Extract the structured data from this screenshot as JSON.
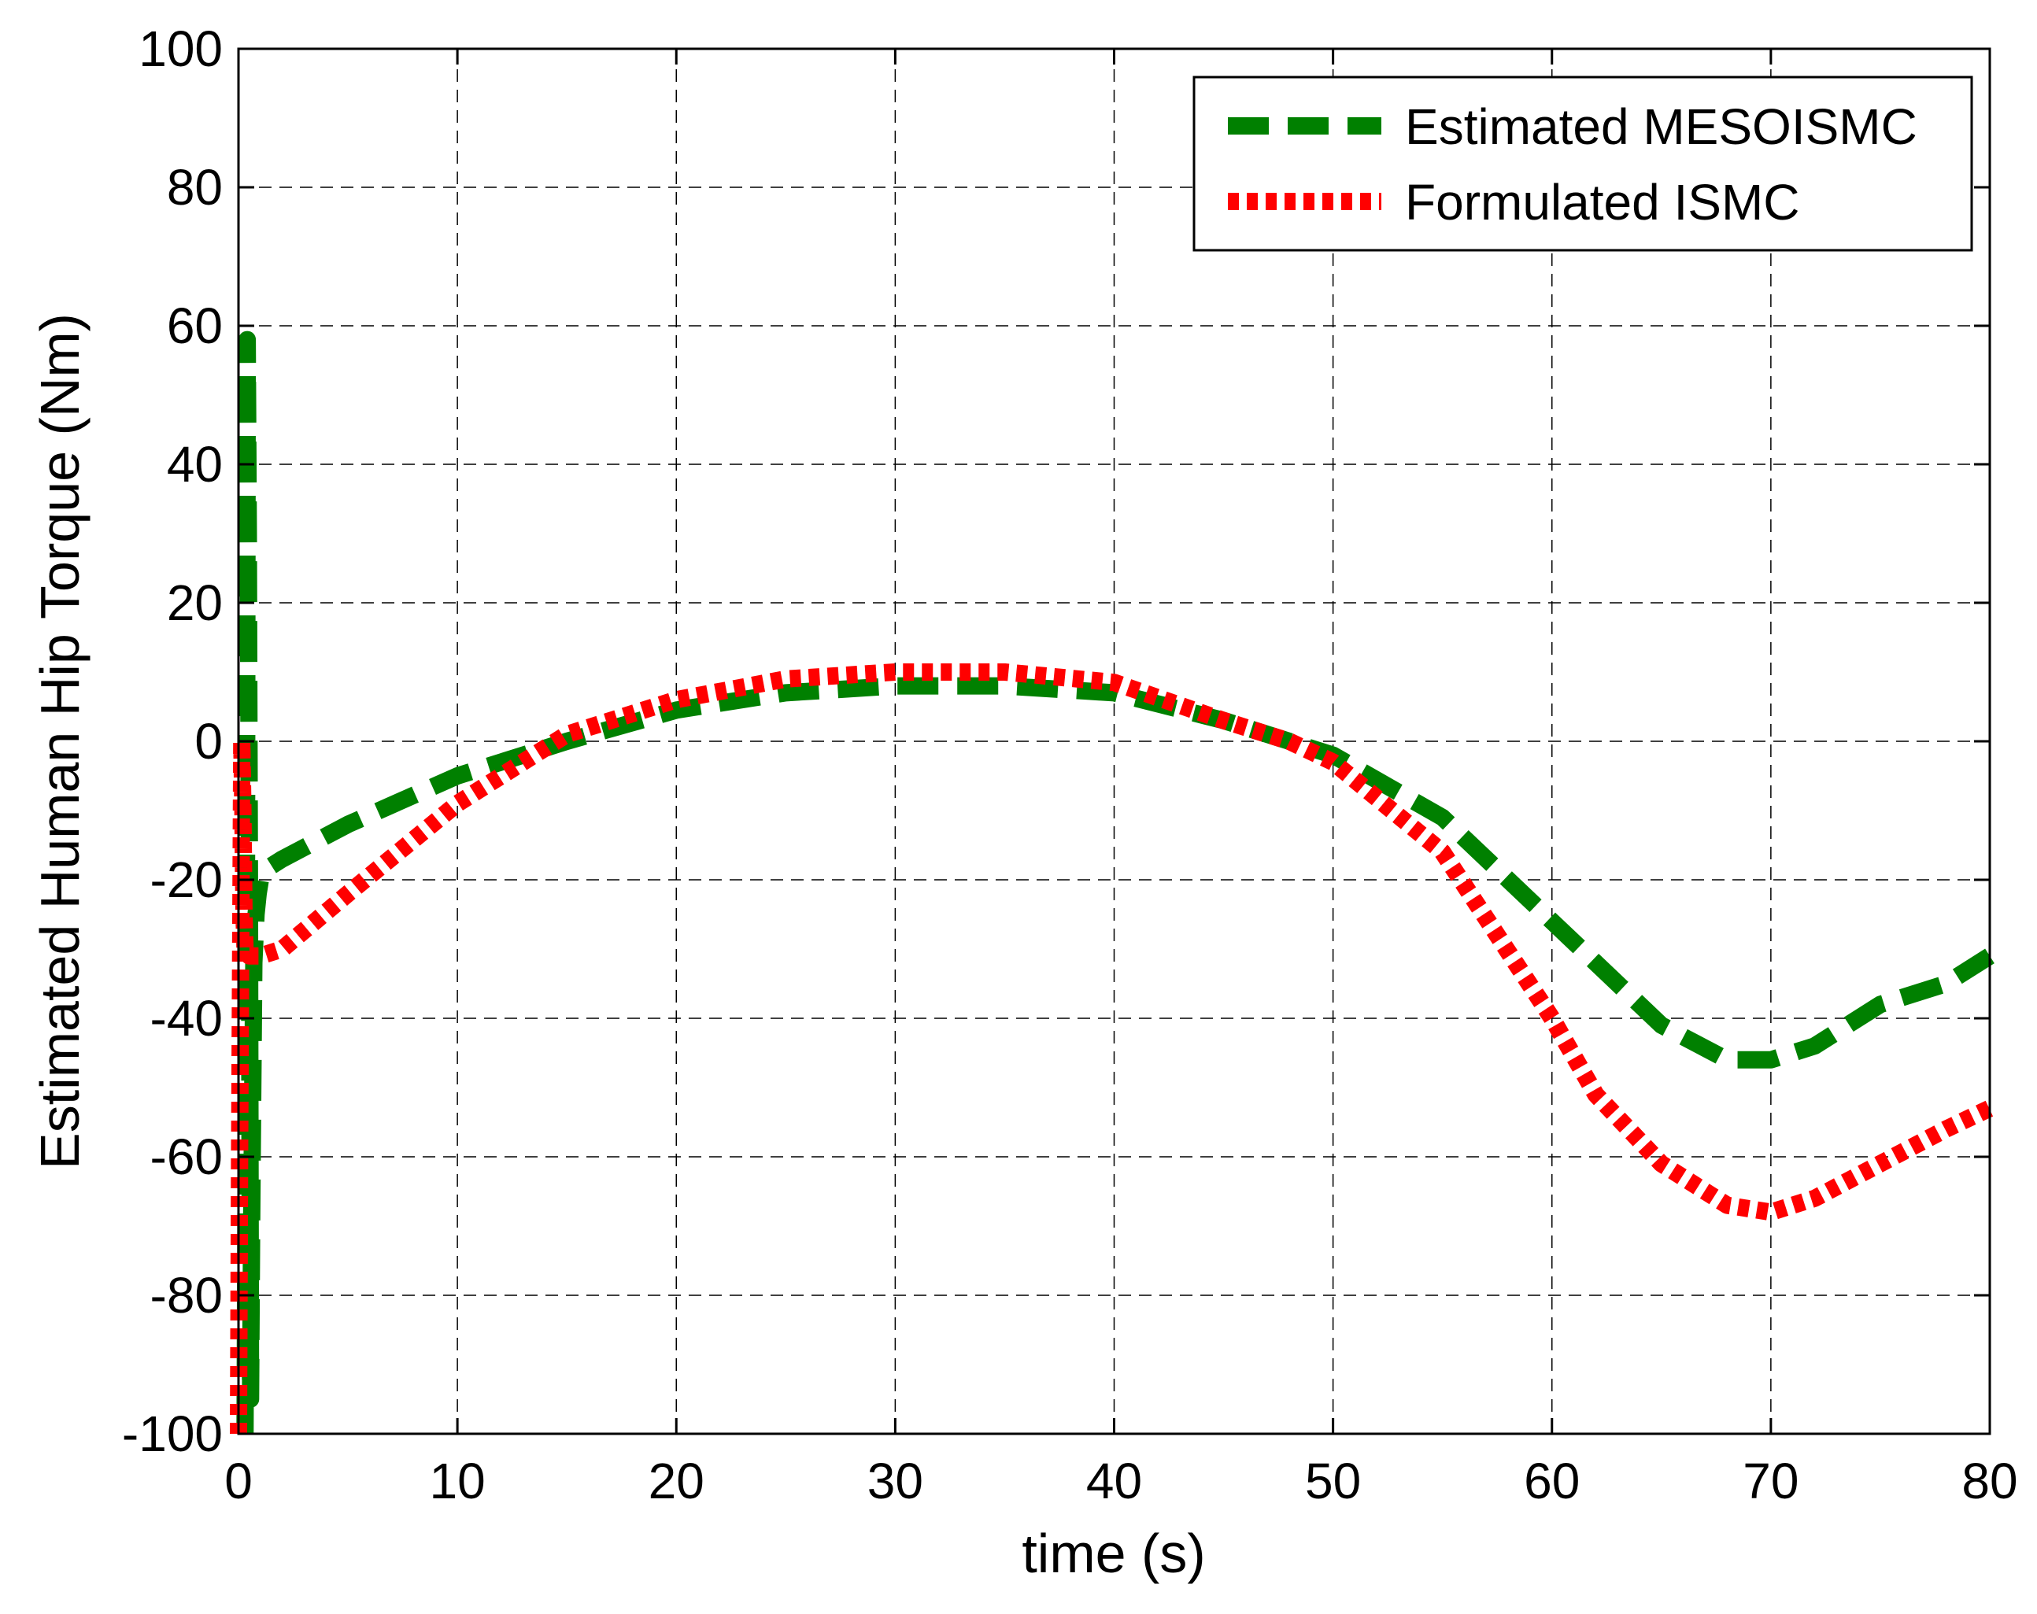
{
  "chart_data": {
    "type": "line",
    "title": "",
    "xlabel": "time (s)",
    "ylabel": "Estimated Human Hip Torque (Nm)",
    "xlim": [
      0,
      80
    ],
    "ylim": [
      -100,
      100
    ],
    "xticks": [
      0,
      10,
      20,
      30,
      40,
      50,
      60,
      70,
      80
    ],
    "yticks": [
      -100,
      -80,
      -60,
      -40,
      -20,
      0,
      20,
      40,
      60,
      80,
      100
    ],
    "xtick_labels": [
      "0",
      "10",
      "20",
      "30",
      "40",
      "50",
      "60",
      "70",
      "80"
    ],
    "ytick_labels": [
      "-100",
      "-80",
      "-60",
      "-40",
      "-20",
      "0",
      "20",
      "40",
      "60",
      "80",
      "100"
    ],
    "grid": true,
    "legend_position": "top-right",
    "series": [
      {
        "name": "Estimated MESOISMC",
        "color": "#008000",
        "style": "dashed",
        "x": [
          0.3,
          0.35,
          0.4,
          0.45,
          0.5,
          0.55,
          0.6,
          0.7,
          0.8,
          0.9,
          1.0,
          1.5,
          2,
          5,
          10,
          15,
          20,
          25,
          30,
          35,
          40,
          45,
          50,
          55,
          60,
          65,
          68,
          70,
          72,
          75,
          78,
          80
        ],
        "y": [
          -100,
          -60,
          58,
          30,
          -20,
          -95,
          -70,
          -32,
          -25,
          -22,
          -20,
          -18,
          -17,
          -12,
          -5,
          0,
          4.5,
          7,
          8,
          8,
          7,
          3,
          -2,
          -11,
          -26,
          -41,
          -46,
          -46,
          -44,
          -38,
          -35,
          -31
        ]
      },
      {
        "name": "Formulated ISMC",
        "color": "#ff0000",
        "style": "dotted",
        "x": [
          0.0,
          0.05,
          0.1,
          0.15,
          0.2,
          0.25,
          0.3,
          0.5,
          1,
          2,
          5,
          10,
          15,
          20,
          25,
          30,
          35,
          40,
          45,
          48,
          50,
          55,
          60,
          62,
          65,
          68,
          70,
          72,
          75,
          78,
          80
        ],
        "y": [
          -100,
          -60,
          -30,
          0,
          -10,
          -25,
          -30,
          -31,
          -31,
          -30,
          -22,
          -9,
          1,
          6,
          9,
          10,
          10,
          8.5,
          3,
          0,
          -3,
          -16,
          -40,
          -51,
          -61,
          -67,
          -68,
          -66,
          -61,
          -56,
          -53
        ]
      }
    ]
  }
}
